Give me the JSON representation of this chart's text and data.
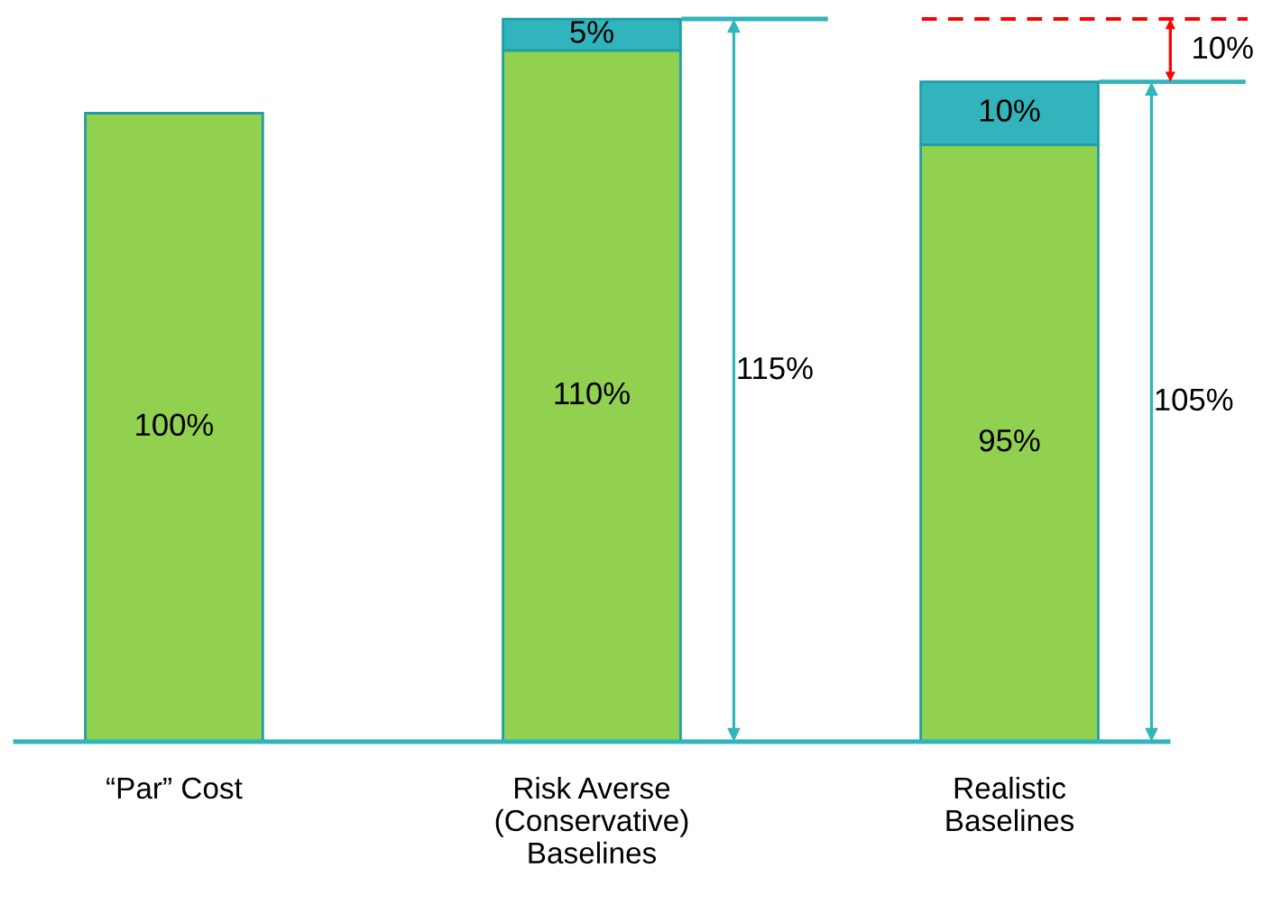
{
  "chart_data": {
    "type": "bar",
    "stacked": true,
    "categories": [
      "“Par” Cost",
      "Risk Averse\n(Conservative)\nBaselines",
      "Realistic\nBaselines"
    ],
    "series": [
      {
        "color": "#92d050",
        "values": [
          100,
          110,
          95
        ],
        "value_labels": [
          "100%",
          "110%",
          "95%"
        ]
      },
      {
        "color": "#31b4bc",
        "values": [
          null,
          5,
          10
        ],
        "value_labels": [
          null,
          "5%",
          "10%"
        ]
      }
    ],
    "totals": [
      null,
      "115%",
      "105%"
    ],
    "ref_lines": [
      {
        "axis": "y",
        "value": 115,
        "color": "#ff0000",
        "line_style": "dashed"
      }
    ],
    "annotations": [
      "10%"
    ],
    "tick_labels": "x",
    "grid": false,
    "legend": false
  }
}
